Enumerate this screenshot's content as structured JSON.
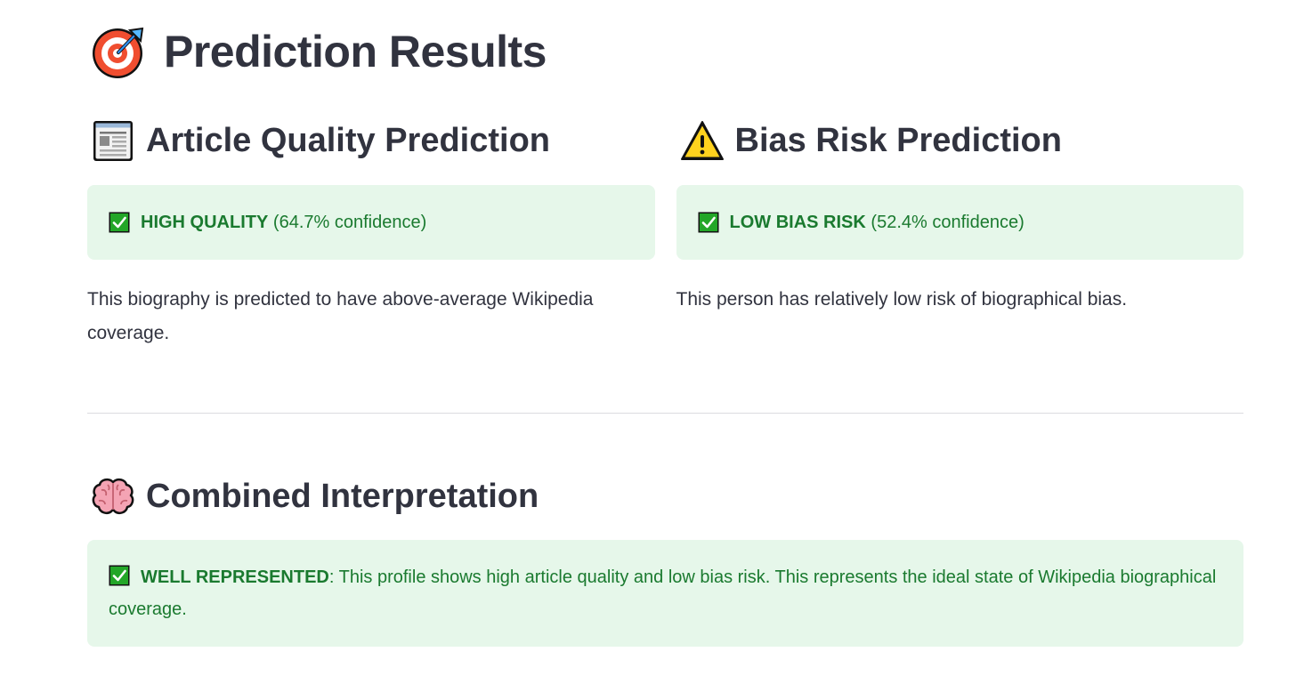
{
  "page": {
    "title": "Prediction Results",
    "title_icon": "target-icon"
  },
  "quality": {
    "heading": "Article Quality Prediction",
    "heading_icon": "newspaper-icon",
    "status_icon": "check-mark-icon",
    "status_label": "HIGH QUALITY",
    "confidence_text": "(64.7% confidence)",
    "confidence_value": 64.7,
    "description": "This biography is predicted to have above-average Wikipedia coverage."
  },
  "bias": {
    "heading": "Bias Risk Prediction",
    "heading_icon": "warning-icon",
    "status_icon": "check-mark-icon",
    "status_label": "LOW BIAS RISK",
    "confidence_text": "(52.4% confidence)",
    "confidence_value": 52.4,
    "description": "This person has relatively low risk of biographical bias."
  },
  "combined": {
    "heading": "Combined Interpretation",
    "heading_icon": "brain-icon",
    "status_icon": "check-mark-icon",
    "status_label": "WELL REPRESENTED",
    "message": ": This profile shows high article quality and low bias risk. This represents the ideal state of Wikipedia biographical coverage."
  },
  "colors": {
    "success_bg": "#e6f7ea",
    "success_text": "#1a7a2f",
    "heading_text": "#31333f",
    "check_green": "#23a628"
  }
}
